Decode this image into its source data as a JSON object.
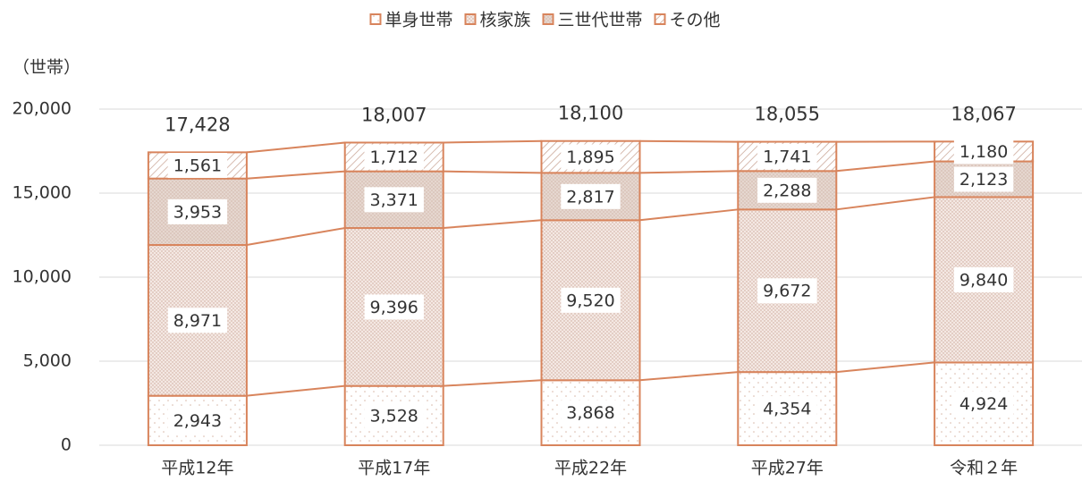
{
  "chart_data": {
    "type": "stacked-bar",
    "y_label": "（世帯）",
    "categories": [
      "平成12年",
      "平成17年",
      "平成22年",
      "平成27年",
      "令和２年"
    ],
    "series": [
      {
        "name": "単身世帯",
        "color": "#d8845c",
        "values": [
          2943,
          3528,
          3868,
          4354,
          4924
        ],
        "value_labels": [
          "2,943",
          "3,528",
          "3,868",
          "4,354",
          "4,924"
        ]
      },
      {
        "name": "核家族",
        "color": "#d8845c",
        "values": [
          8971,
          9396,
          9520,
          9672,
          9840
        ],
        "value_labels": [
          "8,971",
          "9,396",
          "9,520",
          "9,672",
          "9,840"
        ]
      },
      {
        "name": "三世代世帯",
        "color": "#d8845c",
        "values": [
          3953,
          3371,
          2817,
          2288,
          2123
        ],
        "value_labels": [
          "3,953",
          "3,371",
          "2,817",
          "2,288",
          "2,123"
        ]
      },
      {
        "name": "その他",
        "color": "#d8845c",
        "values": [
          1561,
          1712,
          1895,
          1741,
          1180
        ],
        "value_labels": [
          "1,561",
          "1,712",
          "1,895",
          "1,741",
          "1,180"
        ]
      }
    ],
    "totals": [
      17428,
      18007,
      18100,
      18055,
      18067
    ],
    "total_labels": [
      "17,428",
      "18,007",
      "18,100",
      "18,055",
      "18,067"
    ],
    "ylim": [
      0,
      20000
    ],
    "yticks": [
      0,
      {
        "value": 5000,
        "label": "5,000"
      },
      {
        "value": 10000,
        "label": "10,000"
      },
      {
        "value": 15000,
        "label": "15,000"
      },
      {
        "value": 20000,
        "label": "20,000"
      }
    ],
    "grid": true,
    "legend": "top"
  }
}
